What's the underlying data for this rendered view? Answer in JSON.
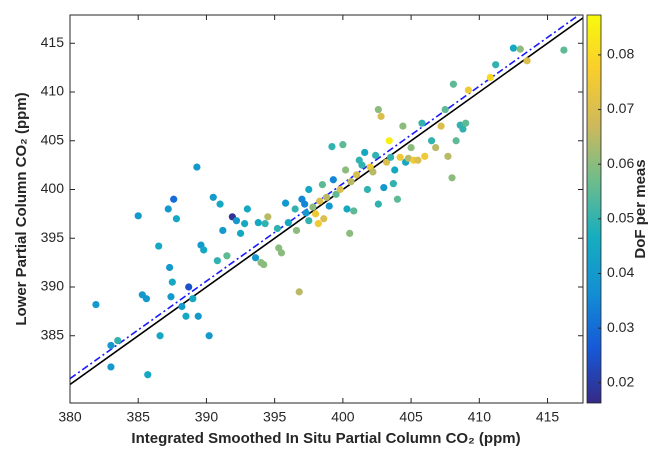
{
  "chart_data": {
    "type": "scatter",
    "xlabel": "Integrated Smoothed In Situ Partial Column CO₂ (ppm)",
    "ylabel": "Lower Partial Column CO₂ (ppm)",
    "colorbar_label": "DoF per meas",
    "xlim": [
      380,
      417.6
    ],
    "ylim": [
      378.1,
      417.9
    ],
    "xticks": [
      380,
      385,
      390,
      395,
      400,
      405,
      410,
      415
    ],
    "yticks": [
      385,
      390,
      395,
      400,
      405,
      410,
      415
    ],
    "clim": [
      0.0163,
      0.0873
    ],
    "cticks": [
      0.02,
      0.03,
      0.04,
      0.05,
      0.06,
      0.07,
      0.08
    ],
    "colormap": [
      "#352a87",
      "#1659d8",
      "#138fd4",
      "#16adbf",
      "#6dbd8c",
      "#cdb95c",
      "#f9cd2d",
      "#f8fa0d"
    ],
    "reference_lines": [
      {
        "slope": 1,
        "intercept": 0,
        "color": "#000000",
        "dash": "solid"
      },
      {
        "slope": 1,
        "intercept": 0.6,
        "color": "#1a1aff",
        "dash": "dashdot"
      }
    ],
    "x": [
      381.9,
      383.0,
      383.5,
      383.0,
      385.0,
      385.3,
      385.6,
      385.7,
      386.5,
      386.6,
      387.2,
      387.3,
      387.5,
      387.6,
      387.8,
      387.4,
      388.2,
      388.5,
      388.7,
      389.0,
      389.3,
      389.4,
      389.6,
      389.8,
      390.2,
      390.5,
      390.8,
      391.0,
      391.2,
      391.5,
      391.9,
      392.2,
      392.5,
      392.8,
      393.0,
      393.6,
      393.8,
      394.0,
      394.2,
      394.5,
      394.3,
      395.2,
      395.3,
      395.5,
      395.8,
      396.0,
      396.5,
      396.6,
      396.8,
      397.0,
      397.2,
      397.3,
      397.5,
      397.5,
      397.8,
      398.0,
      398.2,
      398.3,
      398.5,
      398.6,
      398.8,
      399.0,
      399.2,
      399.3,
      399.5,
      399.8,
      400.0,
      400.2,
      400.3,
      400.5,
      400.6,
      400.8,
      401.0,
      401.2,
      401.4,
      401.6,
      401.8,
      402.0,
      402.2,
      402.4,
      402.6,
      402.8,
      402.6,
      403.0,
      403.2,
      403.4,
      403.5,
      403.7,
      403.8,
      404.0,
      404.2,
      404.4,
      404.6,
      404.8,
      405.0,
      405.2,
      405.5,
      405.8,
      406.0,
      406.5,
      406.8,
      407.2,
      407.5,
      407.7,
      408.0,
      408.1,
      408.3,
      408.6,
      408.8,
      409.0,
      409.2,
      410.8,
      411.2,
      412.5,
      413.0,
      413.5,
      416.2
    ],
    "y": [
      388.2,
      384.0,
      384.5,
      381.8,
      397.3,
      389.2,
      388.8,
      381.0,
      394.2,
      385.0,
      398.0,
      392.0,
      390.5,
      399.0,
      397.0,
      389.0,
      388.0,
      387.0,
      390.0,
      388.8,
      402.3,
      387.0,
      394.3,
      393.8,
      385.0,
      399.2,
      392.7,
      398.5,
      395.8,
      393.2,
      397.2,
      396.8,
      395.5,
      396.5,
      398.0,
      393.0,
      396.6,
      392.5,
      392.3,
      397.2,
      396.5,
      396.0,
      394.0,
      393.5,
      398.6,
      396.6,
      398.0,
      395.8,
      389.5,
      399.0,
      398.5,
      397.6,
      396.8,
      400.0,
      398.2,
      397.5,
      396.5,
      398.8,
      400.5,
      397.0,
      399.2,
      398.3,
      404.4,
      401.0,
      399.5,
      400.0,
      404.6,
      402.0,
      398.0,
      395.5,
      400.8,
      397.8,
      401.5,
      403.0,
      402.5,
      403.8,
      400.0,
      402.3,
      401.8,
      403.5,
      408.2,
      407.5,
      398.5,
      400.2,
      402.8,
      405.0,
      403.3,
      400.6,
      402.0,
      399.0,
      403.3,
      406.5,
      402.8,
      403.2,
      404.3,
      403.0,
      403.0,
      406.8,
      403.4,
      405.0,
      404.3,
      406.5,
      408.2,
      403.4,
      401.2,
      410.8,
      405.0,
      406.6,
      406.2,
      406.8,
      410.2,
      411.5,
      412.8,
      414.5,
      414.4,
      413.2,
      414.3
    ],
    "color_values": [
      0.04,
      0.04,
      0.05,
      0.04,
      0.04,
      0.04,
      0.04,
      0.045,
      0.045,
      0.045,
      0.04,
      0.04,
      0.045,
      0.03,
      0.045,
      0.04,
      0.04,
      0.045,
      0.025,
      0.045,
      0.04,
      0.04,
      0.04,
      0.045,
      0.04,
      0.04,
      0.05,
      0.045,
      0.04,
      0.055,
      0.018,
      0.04,
      0.045,
      0.045,
      0.045,
      0.04,
      0.045,
      0.06,
      0.06,
      0.065,
      0.05,
      0.05,
      0.06,
      0.06,
      0.04,
      0.045,
      0.05,
      0.06,
      0.065,
      0.035,
      0.035,
      0.04,
      0.05,
      0.045,
      0.06,
      0.075,
      0.075,
      0.07,
      0.055,
      0.07,
      0.065,
      0.04,
      0.05,
      0.035,
      0.055,
      0.07,
      0.055,
      0.06,
      0.045,
      0.06,
      0.065,
      0.055,
      0.07,
      0.05,
      0.05,
      0.045,
      0.05,
      0.075,
      0.065,
      0.05,
      0.06,
      0.07,
      0.05,
      0.04,
      0.07,
      0.085,
      0.05,
      0.05,
      0.045,
      0.055,
      0.075,
      0.06,
      0.045,
      0.065,
      0.06,
      0.075,
      0.07,
      0.05,
      0.075,
      0.05,
      0.065,
      0.07,
      0.055,
      0.065,
      0.06,
      0.055,
      0.055,
      0.05,
      0.05,
      0.055,
      0.075,
      0.08,
      0.05,
      0.045,
      0.06,
      0.07,
      0.055
    ]
  }
}
